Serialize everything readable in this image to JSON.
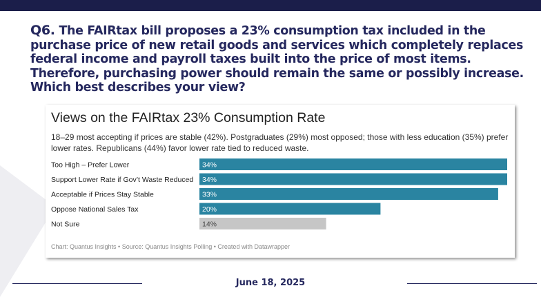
{
  "question": {
    "number": "Q6.",
    "text": "The FAIRtax bill proposes a 23% consumption tax included in the purchase price of new retail goods and services which completely replaces federal income and payroll taxes built into the price of most items. Therefore, purchasing power should remain the same or possibly increase. Which best describes your view?"
  },
  "chart_data": {
    "type": "bar",
    "orientation": "horizontal",
    "title": "Views on the FAIRtax 23% Consumption Rate",
    "subtitle": "18–29 most accepting if prices are stable (42%). Postgraduates (29%) most opposed; those with less education (35%) prefer lower rates. Republicans (44%) favor lower rate tied to reduced waste.",
    "categories": [
      "Too High – Prefer Lower",
      "Support Lower Rate if Gov’t Waste Reduced",
      "Acceptable if Prices Stay Stable",
      "Oppose National Sales Tax",
      "Not Sure"
    ],
    "values": [
      34,
      34,
      33,
      20,
      14
    ],
    "value_labels": [
      "34%",
      "34%",
      "33%",
      "20%",
      "14%"
    ],
    "bar_colors": [
      "#2a84a1",
      "#2a84a1",
      "#2a84a1",
      "#2a84a1",
      "#c6c6c6"
    ],
    "xlim": [
      0,
      34
    ],
    "grid": false,
    "legend": "none",
    "footnote": "Chart: Quantus Insights • Source: Quantus Insights Polling • Created with Datawrapper"
  },
  "footer": {
    "date": "June 18, 2025"
  },
  "colors": {
    "navy": "#25285e",
    "background": "#1b1e4a",
    "bar_primary": "#2a84a1",
    "bar_muted": "#c6c6c6"
  }
}
